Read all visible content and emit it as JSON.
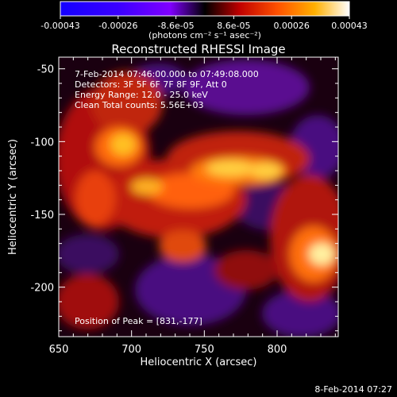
{
  "colorbar": {
    "tick_labels": [
      "-0.00043",
      "-0.00026",
      "-8.6e-05",
      "8.6e-05",
      "0.00026",
      "0.00043"
    ],
    "unit_label": "(photons cm⁻² s⁻¹ asec⁻²)",
    "colors": [
      "#1400ff",
      "#3a00ff",
      "#8000ff",
      "#000000",
      "#c00000",
      "#ff5000",
      "#ffb000",
      "#ffffff"
    ]
  },
  "chart_data": {
    "type": "heatmap",
    "title": "Reconstructed RHESSI Image",
    "xlabel": "Heliocentric X (arcsec)",
    "ylabel": "Heliocentric Y (arcsec)",
    "xlim": [
      650,
      842
    ],
    "ylim": [
      -234,
      -42
    ],
    "x_ticks": [
      "650",
      "700",
      "750",
      "800"
    ],
    "x_tick_values": [
      650,
      700,
      750,
      800
    ],
    "y_ticks": [
      "-50",
      "-100",
      "-150",
      "-200"
    ],
    "y_tick_values": [
      -50,
      -100,
      -150,
      -200
    ],
    "annotations": [
      "7-Feb-2014 07:46:00.000 to 07:49:08.000",
      "Detectors: 3F 5F 6F 7F 8F 9F, Att 0",
      "Energy Range: 12.0 - 25.0 keV",
      "Clean    Total counts: 5.56E+03"
    ],
    "peak_label": "Position of Peak = [831,-177]",
    "peak_position": [
      831,
      -177
    ]
  },
  "footer": {
    "timestamp": "8-Feb-2014 07:27"
  }
}
